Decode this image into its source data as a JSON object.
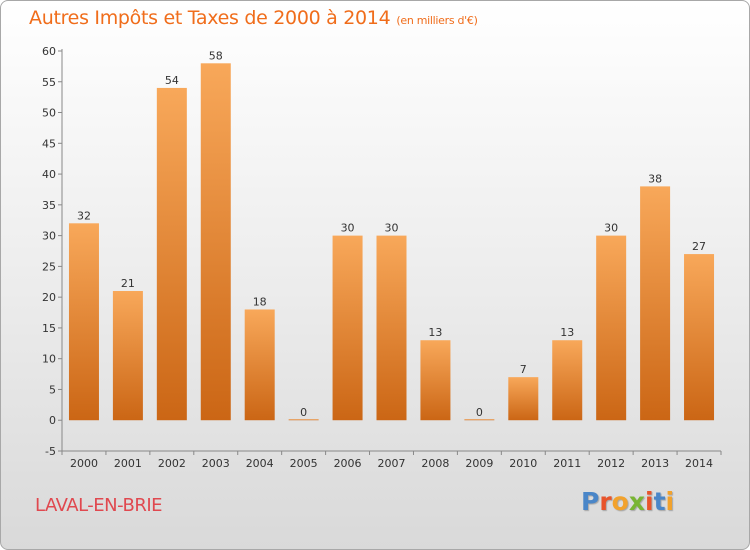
{
  "title": "Autres Impôts et Taxes de 2000 à 2014",
  "subtitle": "(en milliers d'€)",
  "location": "LAVAL-EN-BRIE",
  "logo": {
    "letters": [
      "P",
      "r",
      "o",
      "x",
      "i",
      "t",
      "i"
    ],
    "colors": [
      "#4a86c8",
      "#e8542b",
      "#f2a22c",
      "#79b533",
      "#e8542b",
      "#4a86c8",
      "#f2a22c"
    ]
  },
  "colors": {
    "bar_top": "#f8a85a",
    "bar_bottom": "#cb6615",
    "title": "#f06d1b",
    "location": "#e0484f"
  },
  "chart_data": {
    "type": "bar",
    "categories": [
      "2000",
      "2001",
      "2002",
      "2003",
      "2004",
      "2005",
      "2006",
      "2007",
      "2008",
      "2009",
      "2010",
      "2011",
      "2012",
      "2013",
      "2014"
    ],
    "values": [
      32,
      21,
      54,
      58,
      18,
      0,
      30,
      30,
      13,
      0,
      7,
      13,
      30,
      38,
      27
    ],
    "ylim": [
      -5,
      60
    ],
    "yticks": [
      -5,
      0,
      5,
      10,
      15,
      20,
      25,
      30,
      35,
      40,
      45,
      50,
      55,
      60
    ],
    "grid": false,
    "legend": "none"
  }
}
